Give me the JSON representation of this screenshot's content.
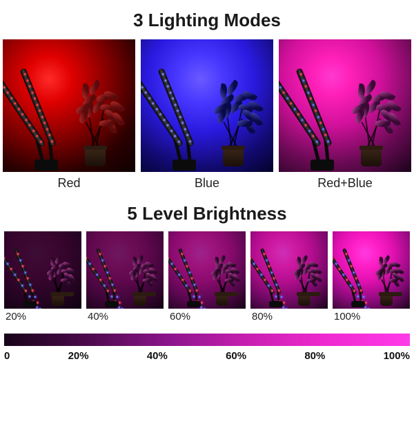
{
  "titles": {
    "modes": "3 Lighting Modes",
    "brightness": "5 Level Brightness"
  },
  "modes": [
    {
      "label": "Red",
      "bg_gradient": "radial-gradient(circle at 35% 30%, #ff2a2a 0%, #e00000 18%, #8a0000 45%, #2a0000 75%, #0d0000 100%)",
      "led_color": "#ff4040",
      "leaf_color": "#5a0a0a",
      "leaf_highlight": "#c13030"
    },
    {
      "label": "Blue",
      "bg_gradient": "radial-gradient(circle at 45% 30%, #6a5aff 0%, #4838ff 20%, #2a1ae0 45%, #120a70 75%, #03022a 100%)",
      "led_color": "#7a80ff",
      "leaf_color": "#0a0a4a",
      "leaf_highlight": "#4a50c0"
    },
    {
      "label": "Red+Blue",
      "bg_gradient": "radial-gradient(circle at 40% 28%, #ff3ad0 0%, #ff20b8 15%, #d0109a 40%, #6a0a55 70%, #1a031a 100%)",
      "led_color_a": "#ff4060",
      "led_color_b": "#6a70ff",
      "leaf_color": "#3a0a35",
      "leaf_highlight": "#c84aa8"
    }
  ],
  "brightness": {
    "levels": [
      {
        "label": "20%",
        "opacity": 0.2
      },
      {
        "label": "40%",
        "opacity": 0.4
      },
      {
        "label": "60%",
        "opacity": 0.6
      },
      {
        "label": "80%",
        "opacity": 0.8
      },
      {
        "label": "100%",
        "opacity": 1.0
      }
    ],
    "glow_gradient": "radial-gradient(circle at 42% 28%, #ff3ae0 0%, #ff20c8 18%, #e010b0 40%, #8a0a7a 68%, #1a031a 100%)",
    "dark_base": "#0b020c",
    "led_color_a": "#ff4060",
    "led_color_b": "#6a70ff",
    "leaf_color": "#2a0828",
    "leaf_highlight": "#c84aa8"
  },
  "gradient_bar": {
    "css": "linear-gradient(90deg, #180418 0%, #4a0a4a 20%, #8a148a 40%, #c81fb0 60%, #f02ad0 80%, #ff3ae8 100%)",
    "ticks": [
      "0",
      "20%",
      "40%",
      "60%",
      "80%",
      "100%"
    ]
  },
  "lamp_geometry": {
    "arm1": {
      "left_pct": 28,
      "bottom_pct": 20,
      "rotate_deg": -34
    },
    "arm2": {
      "left_pct": 36,
      "bottom_pct": 20,
      "rotate_deg": -22
    },
    "stem1": {
      "left_pct": 29,
      "bottom_pct": 6,
      "rotate_deg": -14
    },
    "stem2": {
      "left_pct": 36,
      "bottom_pct": 6,
      "rotate_deg": -6
    },
    "clip_left_pct": 24,
    "pot": {
      "left_pct": 62,
      "bottom_pct": 4
    },
    "plant": {
      "left_pct": 48,
      "bottom_pct": 14
    }
  }
}
